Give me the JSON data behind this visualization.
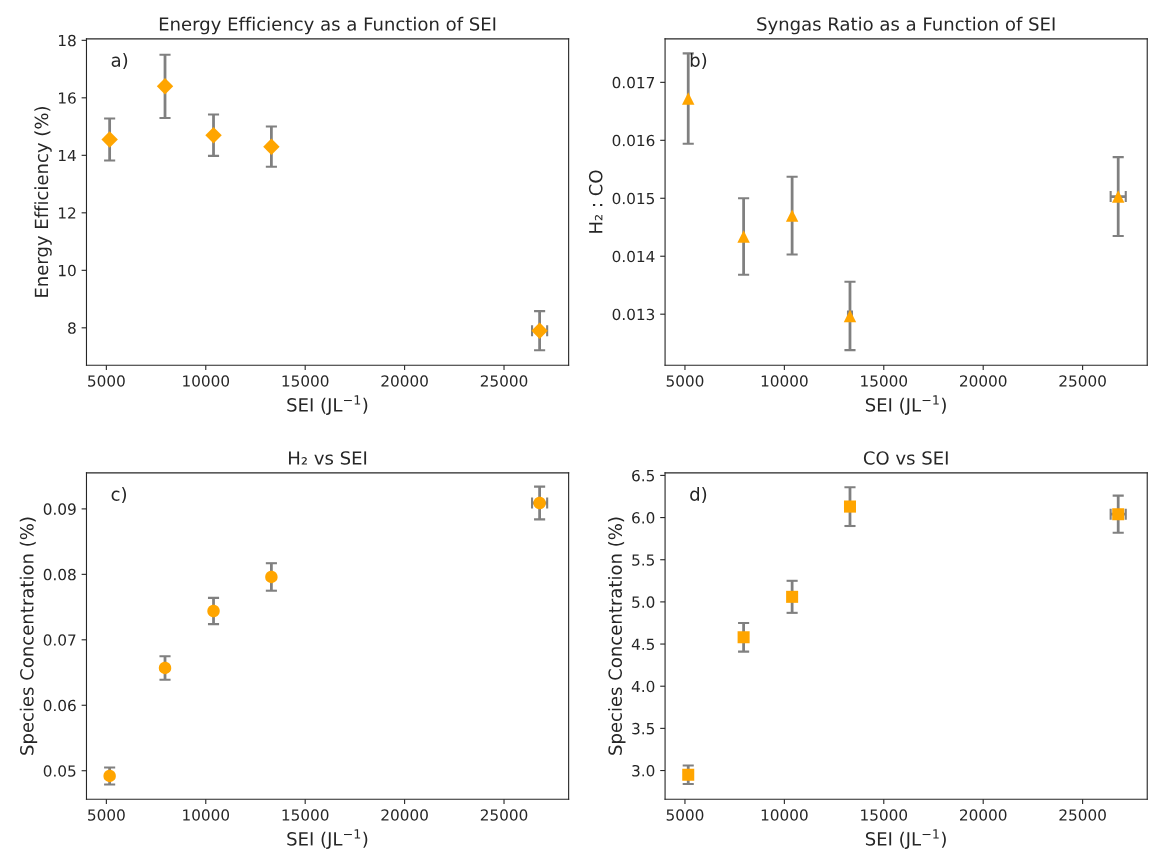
{
  "chart_data": [
    {
      "type": "scatter",
      "title": "Energy Efficiency as a Function of SEI",
      "xlabel": "SEI (JL$^{−1}$)",
      "ylabel": "Energy Efficiency (%)",
      "annotations": [
        "a)"
      ],
      "marker": "diamond",
      "color": "#ffa500",
      "grid": false,
      "x": [
        5165,
        7950,
        10390,
        13300,
        26790
      ],
      "values": [
        14.55,
        16.4,
        14.7,
        14.3,
        7.9
      ],
      "errors": [
        0.73,
        1.1,
        0.72,
        0.7,
        0.68
      ],
      "xerrors": [
        null,
        null,
        null,
        null,
        380
      ],
      "xlim": [
        4000,
        28250
      ],
      "xticks": [
        5000,
        10000,
        15000,
        20000,
        25000
      ],
      "ylim": [
        6.7,
        18.05
      ],
      "yticks": [
        8,
        10,
        12,
        14,
        16,
        18
      ]
    },
    {
      "type": "scatter",
      "title": "Syngas Ratio as a Function of SEI",
      "xlabel": "SEI (JL$^{−1}$)",
      "ylabel": "H₂ : CO",
      "annotations": [
        "b)"
      ],
      "marker": "triangle",
      "color": "#ffa500",
      "grid": false,
      "x": [
        5165,
        7950,
        10390,
        13300,
        26790
      ],
      "values": [
        0.01672,
        0.01434,
        0.0147,
        0.01297,
        0.01503
      ],
      "errors": [
        0.00078,
        0.00066,
        0.00067,
        0.00059,
        0.00068
      ],
      "xerrors": [
        null,
        null,
        null,
        100,
        380
      ],
      "xlim": [
        4000,
        28250
      ],
      "xticks": [
        5000,
        10000,
        15000,
        20000,
        25000
      ],
      "ylim": [
        0.01212,
        0.01775
      ],
      "yticks": [
        0.013,
        0.014,
        0.015,
        0.016,
        0.017
      ]
    },
    {
      "type": "scatter",
      "title": "H₂ vs SEI",
      "xlabel": "SEI (JL$^{−1}$)",
      "ylabel": "Species Concentration (%)",
      "annotations": [
        "c)"
      ],
      "marker": "circle",
      "color": "#ffa500",
      "grid": false,
      "x": [
        5165,
        7950,
        10390,
        13300,
        26790
      ],
      "values": [
        0.0492,
        0.0657,
        0.0744,
        0.0796,
        0.0909
      ],
      "errors": [
        0.0013,
        0.0018,
        0.002,
        0.0021,
        0.0025
      ],
      "xerrors": [
        null,
        null,
        null,
        null,
        380
      ],
      "xlim": [
        4000,
        28250
      ],
      "xticks": [
        5000,
        10000,
        15000,
        20000,
        25000
      ],
      "ylim": [
        0.04565,
        0.0955
      ],
      "yticks": [
        0.05,
        0.06,
        0.07,
        0.08,
        0.09
      ]
    },
    {
      "type": "scatter",
      "title": "CO vs SEI",
      "xlabel": "SEI (JL$^{−1}$)",
      "ylabel": "Species Concentration (%)",
      "annotations": [
        "d)"
      ],
      "marker": "square",
      "color": "#ffa500",
      "grid": false,
      "x": [
        5165,
        7950,
        10390,
        13300,
        26790
      ],
      "values": [
        2.95,
        4.58,
        5.06,
        6.13,
        6.04
      ],
      "errors": [
        0.11,
        0.17,
        0.19,
        0.23,
        0.22
      ],
      "xerrors": [
        null,
        null,
        null,
        null,
        380
      ],
      "xlim": [
        4000,
        28250
      ],
      "xticks": [
        5000,
        10000,
        15000,
        20000,
        25000
      ],
      "ylim": [
        2.66,
        6.53
      ],
      "yticks": [
        {
          "value": 3,
          "label": "3.0"
        },
        3.5,
        {
          "value": 4,
          "label": "4.0"
        },
        4.5,
        {
          "value": 5,
          "label": "5.0"
        },
        5.5,
        {
          "value": 6,
          "label": "6.0"
        },
        6.5
      ]
    }
  ]
}
